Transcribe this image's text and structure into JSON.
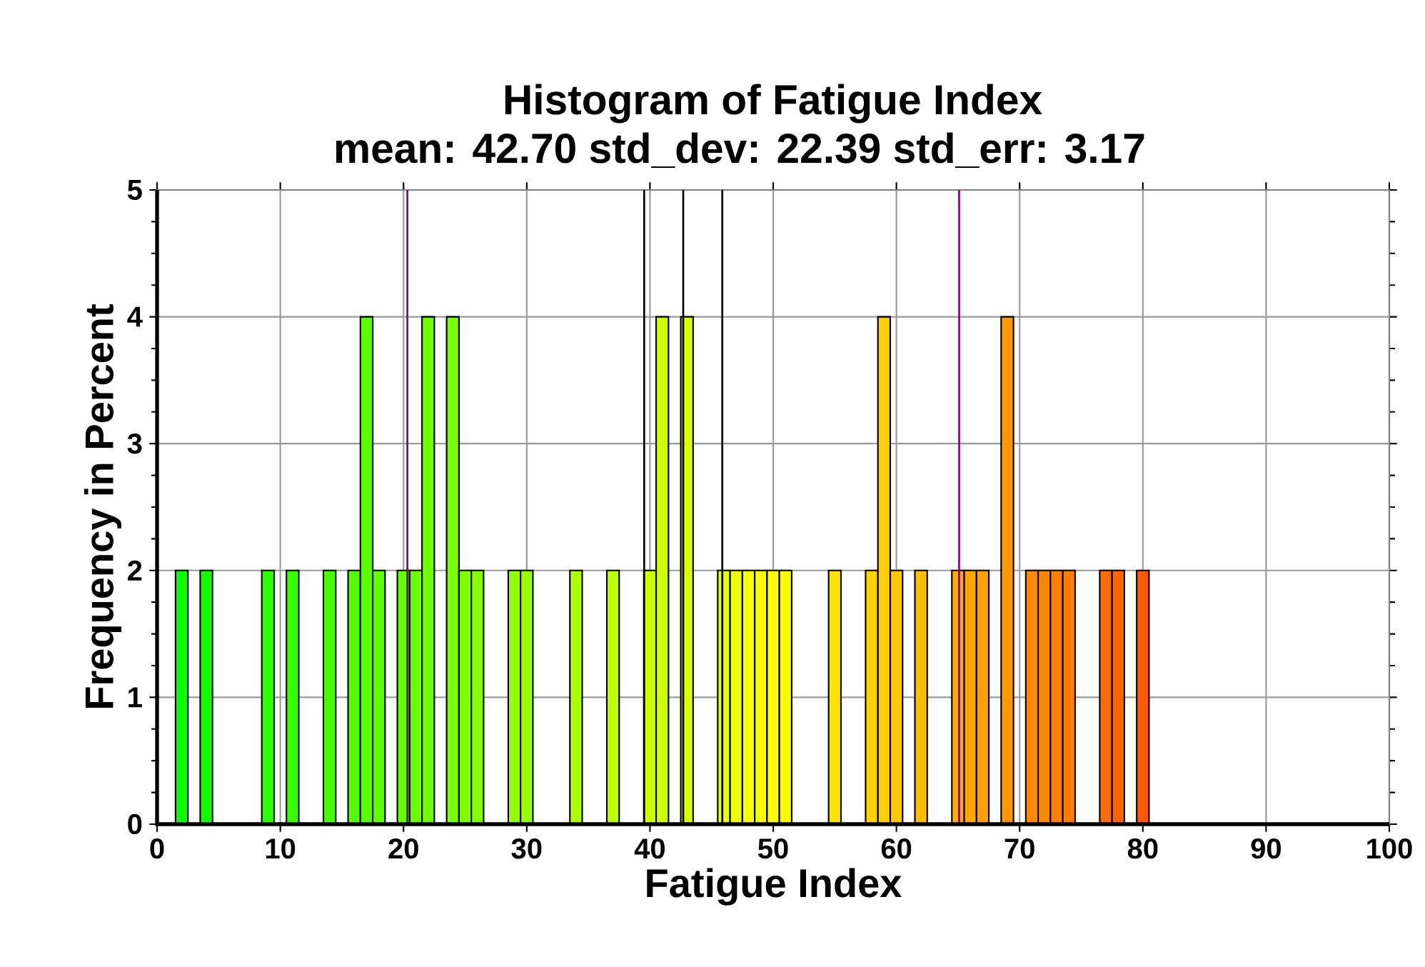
{
  "chart_data": {
    "type": "histogram",
    "title": "Histogram of Fatigue Index",
    "subtitle": "mean: 42.70 std_dev: 22.39 std_err: 3.17",
    "xlabel": "Fatigue Index",
    "ylabel": "Frequency in Percent",
    "bins": [
      1.5,
      2.5,
      3.5,
      4.5,
      5.5,
      6.5,
      7.5,
      8.5,
      9.5,
      10.5,
      11.5,
      12.5,
      13.5,
      14.5,
      15.5,
      16.5,
      17.5,
      18.5,
      19.5,
      20.5,
      21.5,
      22.5,
      23.5,
      24.5,
      25.5,
      26.5,
      27.5,
      28.5,
      29.5,
      30.5,
      31.5,
      32.5,
      33.5,
      34.5,
      35.5,
      36.5,
      37.5,
      38.5,
      39.5,
      40.5,
      41.5,
      42.5,
      43.5,
      44.5,
      45.5,
      46.5,
      47.5,
      48.5,
      49.5,
      50.5,
      51.5,
      52.5,
      53.5,
      54.5,
      55.5,
      56.5,
      57.5,
      58.5,
      59.5,
      60.5,
      61.5,
      62.5,
      63.5,
      64.5,
      65.5,
      66.5,
      67.5,
      68.5,
      69.5,
      70.5,
      71.5,
      72.5,
      73.5,
      74.5,
      75.5,
      76.5,
      77.5,
      78.5,
      79.5,
      80.5
    ],
    "values": [
      2,
      0,
      2,
      0,
      0,
      0,
      0,
      2,
      0,
      2,
      0,
      0,
      2,
      0,
      2,
      4,
      2,
      0,
      2,
      2,
      4,
      0,
      4,
      2,
      2,
      0,
      0,
      2,
      2,
      0,
      0,
      0,
      2,
      0,
      0,
      2,
      0,
      0,
      2,
      4,
      0,
      4,
      0,
      0,
      2,
      2,
      2,
      2,
      2,
      2,
      0,
      0,
      0,
      2,
      0,
      0,
      2,
      4,
      2,
      0,
      2,
      0,
      0,
      2,
      2,
      2,
      0,
      4,
      0,
      2,
      2,
      2,
      2,
      0,
      0,
      2,
      2,
      0,
      2
    ],
    "colors": [
      "#0aff00",
      null,
      "#14ff00",
      null,
      null,
      null,
      null,
      "#2eff00",
      null,
      "#38ff00",
      null,
      null,
      "#47ff00",
      null,
      "#52ff00",
      "#57ff00",
      "#5cff00",
      null,
      "#66ff00",
      "#6bff00",
      "#70ff00",
      null,
      "#7aff00",
      "#80ff00",
      "#85ff00",
      null,
      null,
      "#94ff00",
      "#99ff00",
      null,
      null,
      null,
      "#adff00",
      null,
      null,
      "#bdff00",
      null,
      null,
      "#ccff00",
      "#d1ff00",
      null,
      "#dbff00",
      null,
      null,
      "#ebff00",
      "#f0ff00",
      "#f5ff00",
      "#faff00",
      "#ffff00",
      "#fffa00",
      null,
      null,
      null,
      "#ffe300",
      null,
      null,
      "#ffd300",
      "#ffce00",
      "#ffc800",
      null,
      "#ffbd00",
      null,
      null,
      "#ffad00",
      "#ffa700",
      "#ffa200",
      null,
      "#ff9700",
      null,
      "#ff8c00",
      "#ff8600",
      "#ff8100",
      "#ff7b00",
      null,
      null,
      "#ff6b00",
      "#ff6500",
      null,
      "#ff5a00"
    ],
    "xlim": [
      0,
      100
    ],
    "ylim": [
      0,
      5
    ],
    "xticks": [
      0,
      10,
      20,
      30,
      40,
      50,
      60,
      70,
      80,
      90,
      100
    ],
    "yticks": [
      0,
      1,
      2,
      3,
      4,
      5
    ],
    "ref_lines": [
      {
        "axis": "x",
        "value": 20.31,
        "color": "#800080"
      },
      {
        "axis": "x",
        "value": 39.53,
        "color": "#000000"
      },
      {
        "axis": "x",
        "value": 42.7,
        "color": "#000000"
      },
      {
        "axis": "x",
        "value": 45.87,
        "color": "#000000"
      },
      {
        "axis": "x",
        "value": 65.09,
        "color": "#800080"
      }
    ],
    "grid": true
  }
}
